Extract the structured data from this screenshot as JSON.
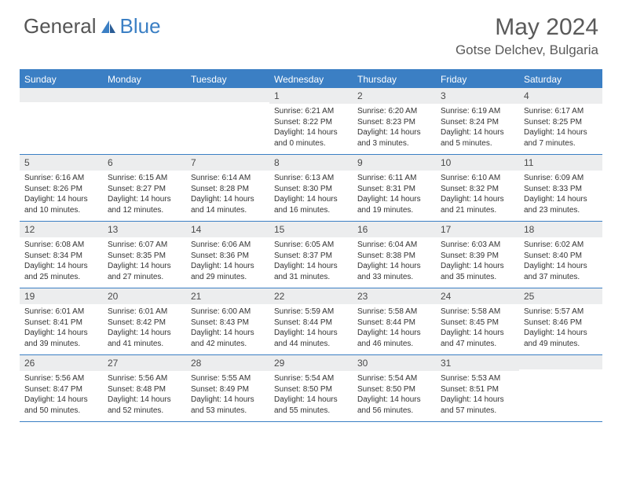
{
  "brand": {
    "part1": "General",
    "part2": "Blue"
  },
  "title": "May 2024",
  "location": "Gotse Delchev, Bulgaria",
  "colors": {
    "accent": "#3b7fc4",
    "daynum_bg": "#ecedee",
    "text": "#333333",
    "header_text": "#5a5a5a",
    "background": "#ffffff"
  },
  "days_of_week": [
    "Sunday",
    "Monday",
    "Tuesday",
    "Wednesday",
    "Thursday",
    "Friday",
    "Saturday"
  ],
  "weeks": [
    [
      {
        "n": "",
        "sr": "",
        "ss": "",
        "dl": ""
      },
      {
        "n": "",
        "sr": "",
        "ss": "",
        "dl": ""
      },
      {
        "n": "",
        "sr": "",
        "ss": "",
        "dl": ""
      },
      {
        "n": "1",
        "sr": "Sunrise: 6:21 AM",
        "ss": "Sunset: 8:22 PM",
        "dl": "Daylight: 14 hours and 0 minutes."
      },
      {
        "n": "2",
        "sr": "Sunrise: 6:20 AM",
        "ss": "Sunset: 8:23 PM",
        "dl": "Daylight: 14 hours and 3 minutes."
      },
      {
        "n": "3",
        "sr": "Sunrise: 6:19 AM",
        "ss": "Sunset: 8:24 PM",
        "dl": "Daylight: 14 hours and 5 minutes."
      },
      {
        "n": "4",
        "sr": "Sunrise: 6:17 AM",
        "ss": "Sunset: 8:25 PM",
        "dl": "Daylight: 14 hours and 7 minutes."
      }
    ],
    [
      {
        "n": "5",
        "sr": "Sunrise: 6:16 AM",
        "ss": "Sunset: 8:26 PM",
        "dl": "Daylight: 14 hours and 10 minutes."
      },
      {
        "n": "6",
        "sr": "Sunrise: 6:15 AM",
        "ss": "Sunset: 8:27 PM",
        "dl": "Daylight: 14 hours and 12 minutes."
      },
      {
        "n": "7",
        "sr": "Sunrise: 6:14 AM",
        "ss": "Sunset: 8:28 PM",
        "dl": "Daylight: 14 hours and 14 minutes."
      },
      {
        "n": "8",
        "sr": "Sunrise: 6:13 AM",
        "ss": "Sunset: 8:30 PM",
        "dl": "Daylight: 14 hours and 16 minutes."
      },
      {
        "n": "9",
        "sr": "Sunrise: 6:11 AM",
        "ss": "Sunset: 8:31 PM",
        "dl": "Daylight: 14 hours and 19 minutes."
      },
      {
        "n": "10",
        "sr": "Sunrise: 6:10 AM",
        "ss": "Sunset: 8:32 PM",
        "dl": "Daylight: 14 hours and 21 minutes."
      },
      {
        "n": "11",
        "sr": "Sunrise: 6:09 AM",
        "ss": "Sunset: 8:33 PM",
        "dl": "Daylight: 14 hours and 23 minutes."
      }
    ],
    [
      {
        "n": "12",
        "sr": "Sunrise: 6:08 AM",
        "ss": "Sunset: 8:34 PM",
        "dl": "Daylight: 14 hours and 25 minutes."
      },
      {
        "n": "13",
        "sr": "Sunrise: 6:07 AM",
        "ss": "Sunset: 8:35 PM",
        "dl": "Daylight: 14 hours and 27 minutes."
      },
      {
        "n": "14",
        "sr": "Sunrise: 6:06 AM",
        "ss": "Sunset: 8:36 PM",
        "dl": "Daylight: 14 hours and 29 minutes."
      },
      {
        "n": "15",
        "sr": "Sunrise: 6:05 AM",
        "ss": "Sunset: 8:37 PM",
        "dl": "Daylight: 14 hours and 31 minutes."
      },
      {
        "n": "16",
        "sr": "Sunrise: 6:04 AM",
        "ss": "Sunset: 8:38 PM",
        "dl": "Daylight: 14 hours and 33 minutes."
      },
      {
        "n": "17",
        "sr": "Sunrise: 6:03 AM",
        "ss": "Sunset: 8:39 PM",
        "dl": "Daylight: 14 hours and 35 minutes."
      },
      {
        "n": "18",
        "sr": "Sunrise: 6:02 AM",
        "ss": "Sunset: 8:40 PM",
        "dl": "Daylight: 14 hours and 37 minutes."
      }
    ],
    [
      {
        "n": "19",
        "sr": "Sunrise: 6:01 AM",
        "ss": "Sunset: 8:41 PM",
        "dl": "Daylight: 14 hours and 39 minutes."
      },
      {
        "n": "20",
        "sr": "Sunrise: 6:01 AM",
        "ss": "Sunset: 8:42 PM",
        "dl": "Daylight: 14 hours and 41 minutes."
      },
      {
        "n": "21",
        "sr": "Sunrise: 6:00 AM",
        "ss": "Sunset: 8:43 PM",
        "dl": "Daylight: 14 hours and 42 minutes."
      },
      {
        "n": "22",
        "sr": "Sunrise: 5:59 AM",
        "ss": "Sunset: 8:44 PM",
        "dl": "Daylight: 14 hours and 44 minutes."
      },
      {
        "n": "23",
        "sr": "Sunrise: 5:58 AM",
        "ss": "Sunset: 8:44 PM",
        "dl": "Daylight: 14 hours and 46 minutes."
      },
      {
        "n": "24",
        "sr": "Sunrise: 5:58 AM",
        "ss": "Sunset: 8:45 PM",
        "dl": "Daylight: 14 hours and 47 minutes."
      },
      {
        "n": "25",
        "sr": "Sunrise: 5:57 AM",
        "ss": "Sunset: 8:46 PM",
        "dl": "Daylight: 14 hours and 49 minutes."
      }
    ],
    [
      {
        "n": "26",
        "sr": "Sunrise: 5:56 AM",
        "ss": "Sunset: 8:47 PM",
        "dl": "Daylight: 14 hours and 50 minutes."
      },
      {
        "n": "27",
        "sr": "Sunrise: 5:56 AM",
        "ss": "Sunset: 8:48 PM",
        "dl": "Daylight: 14 hours and 52 minutes."
      },
      {
        "n": "28",
        "sr": "Sunrise: 5:55 AM",
        "ss": "Sunset: 8:49 PM",
        "dl": "Daylight: 14 hours and 53 minutes."
      },
      {
        "n": "29",
        "sr": "Sunrise: 5:54 AM",
        "ss": "Sunset: 8:50 PM",
        "dl": "Daylight: 14 hours and 55 minutes."
      },
      {
        "n": "30",
        "sr": "Sunrise: 5:54 AM",
        "ss": "Sunset: 8:50 PM",
        "dl": "Daylight: 14 hours and 56 minutes."
      },
      {
        "n": "31",
        "sr": "Sunrise: 5:53 AM",
        "ss": "Sunset: 8:51 PM",
        "dl": "Daylight: 14 hours and 57 minutes."
      },
      {
        "n": "",
        "sr": "",
        "ss": "",
        "dl": ""
      }
    ]
  ]
}
